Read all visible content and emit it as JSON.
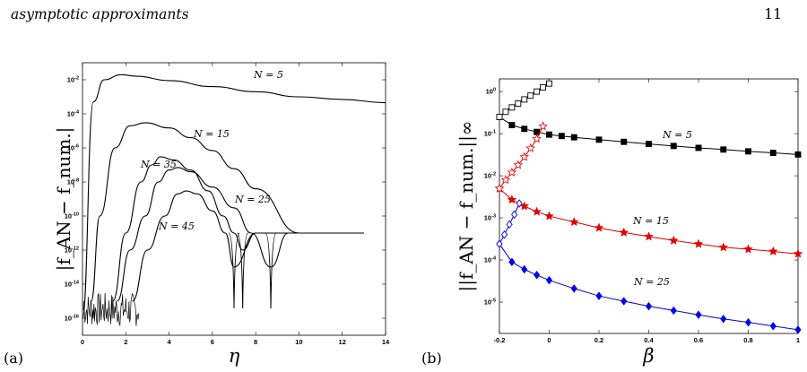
{
  "page": {
    "running_head": "asymptotic approximants",
    "page_number": "11"
  },
  "panel_a_label": "(a)",
  "panel_b_label": "(b)",
  "chart_data": [
    {
      "type": "line",
      "panel": "(a)",
      "xlabel": "η",
      "ylabel": "|f_AN − f_num.|",
      "xlim": [
        0,
        14
      ],
      "ylim": [
        1e-17,
        0.1
      ],
      "yscale": "log",
      "x_ticks": [
        "0",
        "2",
        "4",
        "6",
        "8",
        "10",
        "12",
        "14"
      ],
      "y_ticks": [
        "10^-2",
        "10^-4",
        "10^-6",
        "10^-8",
        "10^-10",
        "10^-12",
        "10^-14",
        "10^-16"
      ],
      "series": [
        {
          "name": "N = 5",
          "x": [
            0.0,
            0.5,
            1.0,
            1.8,
            2.5,
            4,
            6,
            8,
            10,
            12,
            14
          ],
          "y": [
            1e-16,
            0.0005,
            0.01,
            0.02,
            0.016,
            0.009,
            0.004,
            0.002,
            0.001,
            0.0007,
            0.00045
          ]
        },
        {
          "name": "N = 15",
          "x": [
            0.4,
            0.8,
            1.5,
            2.2,
            2.9,
            4,
            5,
            6,
            7,
            8,
            10,
            12,
            13
          ],
          "y": [
            1e-15,
            1e-10,
            1e-06,
            2e-05,
            3e-05,
            1.5e-05,
            4e-06,
            7e-07,
            6e-08,
            4e-09,
            1e-11,
            1e-11,
            1e-11
          ]
        },
        {
          "name": "N = 35",
          "x": [
            1.4,
            2.0,
            2.7,
            3.2,
            3.6,
            4.2,
            5.0,
            5.8,
            6.5,
            7.0,
            7.4,
            8,
            10,
            12,
            13
          ],
          "y": [
            1e-15,
            1e-11,
            1e-08,
            1e-07,
            3e-07,
            2e-07,
            5e-08,
            3e-09,
            1e-10,
            1e-11,
            1e-12,
            1e-11,
            1e-11,
            1e-11,
            1e-11
          ]
        },
        {
          "name": "N = 25",
          "x": [
            1.6,
            2.2,
            2.9,
            3.5,
            4.0,
            4.4,
            5.0,
            6.0,
            7.0,
            7.8,
            8.7,
            9.5,
            11,
            13
          ],
          "y": [
            1e-15,
            1e-12,
            1e-10,
            1e-08,
            5e-08,
            7e-08,
            4e-08,
            5e-09,
            3e-10,
            1e-11,
            1e-13,
            1e-11,
            1e-11,
            1e-11
          ]
        },
        {
          "name": "N = 45",
          "x": [
            2.3,
            3.0,
            3.8,
            4.4,
            4.8,
            5.3,
            6.0,
            6.6,
            7.0,
            8,
            10,
            12,
            13
          ],
          "y": [
            1e-15,
            1e-12,
            1e-10,
            2e-09,
            3e-09,
            2e-09,
            2e-10,
            1e-11,
            1e-13,
            1e-11,
            1e-11,
            1e-11,
            1e-11
          ]
        }
      ]
    },
    {
      "type": "line",
      "panel": "(b)",
      "xlabel": "β",
      "ylabel": "||f_AN − f_num.||∞",
      "xlim": [
        -0.2,
        1
      ],
      "ylim": [
        1.8e-06,
        2
      ],
      "yscale": "log",
      "x_ticks": [
        "-0.2",
        "0",
        "0.2",
        "0.4",
        "0.6",
        "0.8",
        "1"
      ],
      "y_ticks": [
        "10^0",
        "10^-1",
        "10^-2",
        "10^-3",
        "10^-4",
        "10^-5"
      ],
      "series": [
        {
          "name": "N = 5 (filled squares)",
          "x": [
            -0.2,
            -0.15,
            -0.1,
            -0.05,
            0.0,
            0.05,
            0.1,
            0.2,
            0.3,
            0.4,
            0.5,
            0.6,
            0.7,
            0.8,
            0.9,
            1.0
          ],
          "y": [
            0.25,
            0.16,
            0.13,
            0.11,
            0.095,
            0.088,
            0.082,
            0.072,
            0.064,
            0.057,
            0.051,
            0.046,
            0.042,
            0.038,
            0.035,
            0.032
          ]
        },
        {
          "name": "N = 5 (open squares)",
          "x": [
            -0.2,
            -0.175,
            -0.15,
            -0.125,
            -0.1,
            -0.075,
            -0.05,
            -0.025,
            0.0
          ],
          "y": [
            0.25,
            0.33,
            0.42,
            0.52,
            0.65,
            0.8,
            1.0,
            1.25,
            1.55
          ]
        },
        {
          "name": "N = 15 (filled stars)",
          "x": [
            -0.2,
            -0.15,
            -0.1,
            -0.05,
            0.0,
            0.1,
            0.2,
            0.3,
            0.4,
            0.5,
            0.6,
            0.7,
            0.8,
            0.9,
            1.0
          ],
          "y": [
            0.005,
            0.0027,
            0.0019,
            0.0014,
            0.0011,
            0.0008,
            0.00058,
            0.00045,
            0.00036,
            0.00029,
            0.00024,
            0.0002,
            0.00018,
            0.00016,
            0.00014
          ]
        },
        {
          "name": "N = 15 (open stars)",
          "x": [
            -0.2,
            -0.175,
            -0.15,
            -0.125,
            -0.1,
            -0.075,
            -0.05,
            -0.025
          ],
          "y": [
            0.005,
            0.008,
            0.012,
            0.018,
            0.028,
            0.045,
            0.075,
            0.15
          ]
        },
        {
          "name": "N = 25 (filled diamonds)",
          "x": [
            -0.2,
            -0.15,
            -0.1,
            -0.05,
            0.0,
            0.1,
            0.2,
            0.3,
            0.4,
            0.5,
            0.6,
            0.7,
            0.8,
            0.9,
            1.0
          ],
          "y": [
            0.00024,
            9e-05,
            6e-05,
            4.4e-05,
            3.3e-05,
            2.1e-05,
            1.4e-05,
            1.05e-05,
            8e-06,
            6.3e-06,
            5e-06,
            4e-06,
            3.3e-06,
            2.7e-06,
            2.2e-06
          ]
        },
        {
          "name": "N = 25 (open diamonds)",
          "x": [
            -0.2,
            -0.18,
            -0.16,
            -0.14,
            -0.12
          ],
          "y": [
            0.00024,
            0.0004,
            0.0007,
            0.0012,
            0.0022
          ]
        }
      ]
    }
  ]
}
